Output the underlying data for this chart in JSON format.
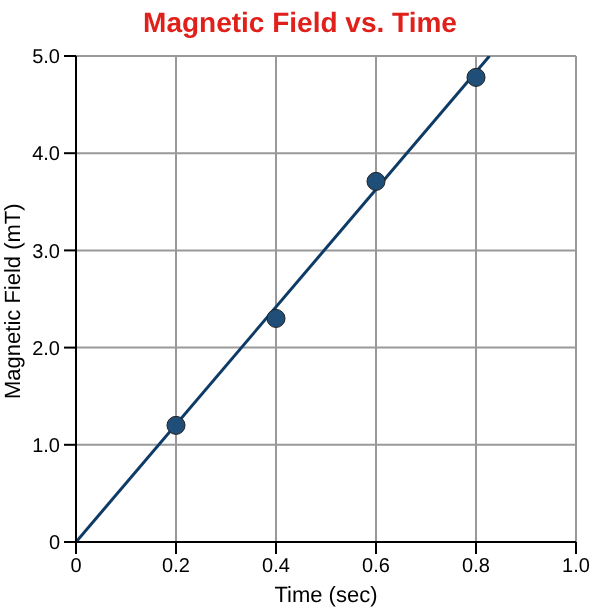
{
  "chart_data": {
    "type": "scatter",
    "title": "Magnetic Field vs. Time",
    "xlabel": "Time (sec)",
    "ylabel": "Magnetic Field (mT)",
    "series": [
      {
        "color": "#1f4e79",
        "marker": "circle",
        "x": [
          0.2,
          0.4,
          0.6,
          0.8
        ],
        "values": [
          1.2,
          2.3,
          3.71,
          4.78
        ]
      },
      {
        "type": "line",
        "color": "#0d3b66",
        "x": [
          0,
          0.827
        ],
        "values": [
          0,
          5
        ]
      }
    ],
    "xlim": [
      0,
      1
    ],
    "ylim": [
      0,
      5
    ],
    "xticks": [
      0,
      0.2,
      0.4,
      0.6,
      0.8,
      {
        "value": 1,
        "label": "1.0"
      }
    ],
    "yticks": [
      0,
      {
        "value": 1,
        "label": "1.0"
      },
      {
        "value": 2,
        "label": "2.0"
      },
      {
        "value": 3,
        "label": "3.0"
      },
      {
        "value": 4,
        "label": "4.0"
      },
      {
        "value": 5,
        "label": "5.0"
      }
    ],
    "grid": true
  }
}
